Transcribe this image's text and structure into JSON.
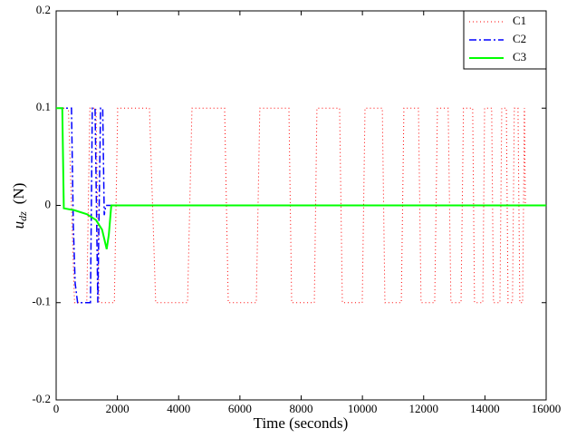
{
  "chart_data": {
    "type": "line",
    "xlabel": "Time (seconds)",
    "ylabel_symbol": "u",
    "ylabel_subscript": "dz",
    "ylabel_unit": "(N)",
    "xlim": [
      0,
      16000
    ],
    "xticks": [
      0,
      2000,
      4000,
      6000,
      8000,
      10000,
      12000,
      14000,
      16000
    ],
    "ylim": [
      -0.2,
      0.2
    ],
    "yticks": [
      -0.2,
      -0.1,
      0,
      0.1,
      0.2
    ],
    "grid": false,
    "legend": "upper right",
    "series": [
      {
        "name": "C1",
        "color": "#ff0000",
        "style": "dotted",
        "x": [
          0,
          400,
          600,
          1000,
          1100,
          1300,
          1400,
          1900,
          2010,
          3046,
          3250,
          4290,
          4435,
          5500,
          5620,
          6535,
          6650,
          7600,
          7690,
          8430,
          8515,
          9255,
          9345,
          9995,
          10085,
          10650,
          10735,
          11270,
          11355,
          11830,
          11915,
          12360,
          12450,
          12800,
          12890,
          13220,
          13300,
          13600,
          13660,
          13930,
          13990,
          14220,
          14280,
          14490,
          14550,
          14700,
          14755,
          14900,
          14960,
          15080,
          15140,
          15230,
          15290,
          15320,
          16000
        ],
        "values": [
          0.1,
          0.1,
          -0.1,
          -0.1,
          0.1,
          0.1,
          -0.1,
          -0.1,
          0.1,
          0.1,
          -0.1,
          -0.1,
          0.1,
          0.1,
          -0.1,
          -0.1,
          0.1,
          0.1,
          -0.1,
          -0.1,
          0.1,
          0.1,
          -0.1,
          -0.1,
          0.1,
          0.1,
          -0.1,
          -0.1,
          0.1,
          0.1,
          -0.1,
          -0.1,
          0.1,
          0.1,
          -0.1,
          -0.1,
          0.1,
          0.1,
          -0.1,
          -0.1,
          0.1,
          0.1,
          -0.1,
          -0.1,
          0.1,
          0.1,
          -0.1,
          -0.1,
          0.1,
          0.1,
          -0.1,
          -0.1,
          0.1,
          0,
          0
        ]
      },
      {
        "name": "C2",
        "color": "#0000ff",
        "style": "dashdot",
        "x": [
          0,
          500,
          560,
          620,
          700,
          1120,
          1180,
          1270,
          1360,
          1450,
          1520,
          1570,
          1620,
          16000
        ],
        "values": [
          0.1,
          0.1,
          -0.02,
          -0.08,
          -0.1,
          -0.1,
          0.1,
          0.1,
          -0.1,
          0.1,
          0.1,
          -0.01,
          0,
          0
        ]
      },
      {
        "name": "C3",
        "color": "#00ff00",
        "style": "solid",
        "x": [
          0,
          200,
          250,
          600,
          1000,
          1300,
          1500,
          1650,
          1720,
          1800,
          16000
        ],
        "values": [
          0.1,
          0.1,
          -0.003,
          -0.005,
          -0.009,
          -0.015,
          -0.025,
          -0.045,
          -0.03,
          0,
          0
        ]
      }
    ]
  }
}
